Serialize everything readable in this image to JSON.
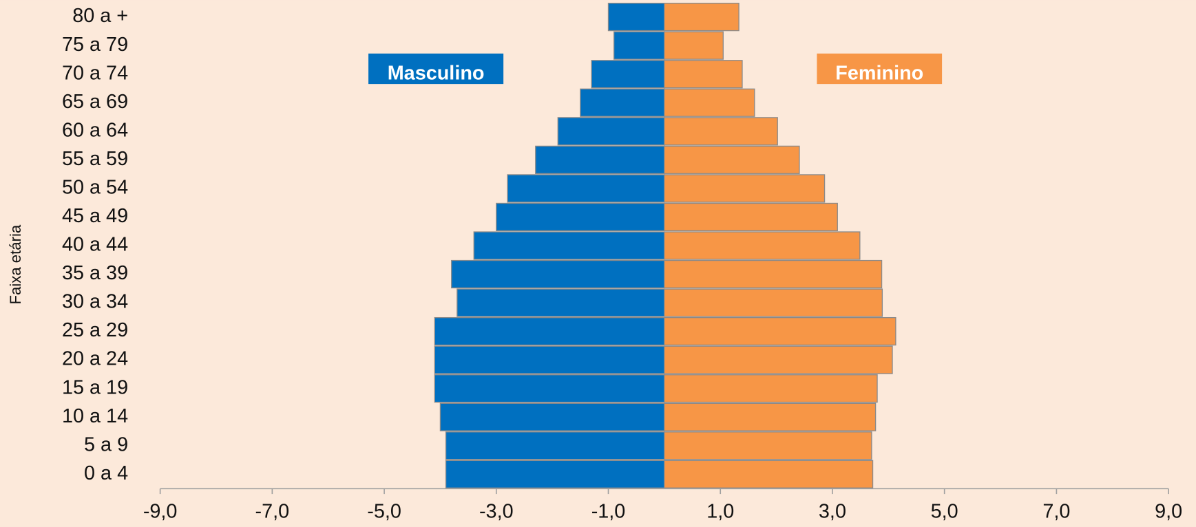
{
  "chart_data": {
    "type": "pyramid",
    "y_label": "Faixa etária",
    "categories": [
      "0 a 4",
      "5 a 9",
      "10 a 14",
      "15 a 19",
      "20 a 24",
      "25 a 29",
      "30 a 34",
      "35 a 39",
      "40 a 44",
      "45 a 49",
      "50 a 54",
      "55 a 59",
      "60 a 64",
      "65 a 69",
      "70 a 74",
      "75 a 79",
      "80 a +"
    ],
    "series": [
      {
        "name": "Masculino",
        "color": "#0070c0",
        "values": [
          -3.9,
          -3.9,
          -4.0,
          -4.1,
          -4.1,
          -4.1,
          -3.7,
          -3.8,
          -3.4,
          -3.0,
          -2.8,
          -2.3,
          -1.9,
          -1.5,
          -1.3,
          -0.9,
          -1.0
        ]
      },
      {
        "name": "Feminino",
        "color": "#f79646",
        "values": [
          3.72,
          3.7,
          3.77,
          3.8,
          4.07,
          4.13,
          3.89,
          3.88,
          3.49,
          3.09,
          2.86,
          2.41,
          2.02,
          1.61,
          1.39,
          1.05,
          1.33
        ]
      }
    ],
    "xlim": [
      -9,
      9
    ],
    "xticks": [
      {
        "value": -9,
        "label": "-9,0"
      },
      {
        "value": -7,
        "label": "-7,0"
      },
      {
        "value": -5,
        "label": "-5,0"
      },
      {
        "value": -3,
        "label": "-3,0"
      },
      {
        "value": -1,
        "label": "-1,0"
      },
      {
        "value": 1,
        "label": "1,0"
      },
      {
        "value": 3,
        "label": "3,0"
      },
      {
        "value": 5,
        "label": "5,0"
      },
      {
        "value": 7,
        "label": "7,0"
      },
      {
        "value": 9,
        "label": "9,0"
      }
    ]
  }
}
